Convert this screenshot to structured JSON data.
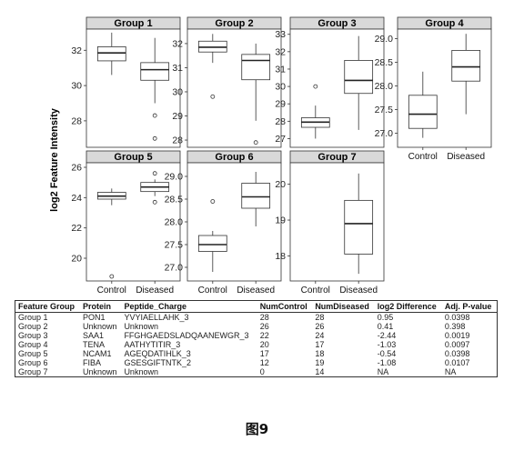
{
  "chart_data": {
    "type": "boxplot",
    "ylabel": "log2 Feature Intensity",
    "categories": [
      "Control",
      "Diseased"
    ],
    "panels": [
      {
        "title": "Group 1",
        "ylim": [
          26.5,
          33.2
        ],
        "yticks": [
          28,
          30,
          32
        ],
        "boxes": [
          {
            "category": "Control",
            "min": 30.6,
            "q1": 31.4,
            "median": 31.85,
            "q3": 32.2,
            "max": 33.0,
            "outliers": []
          },
          {
            "category": "Diseased",
            "min": 29.0,
            "q1": 30.3,
            "median": 30.9,
            "q3": 31.3,
            "max": 32.7,
            "outliers": [
              28.3,
              27.0
            ]
          }
        ]
      },
      {
        "title": "Group 2",
        "ylim": [
          27.7,
          32.6
        ],
        "yticks": [
          28,
          29,
          30,
          31,
          32
        ],
        "boxes": [
          {
            "category": "Control",
            "min": 31.2,
            "q1": 31.65,
            "median": 31.85,
            "q3": 32.1,
            "max": 32.4,
            "outliers": [
              29.8
            ]
          },
          {
            "category": "Diseased",
            "min": 28.8,
            "q1": 30.5,
            "median": 31.3,
            "q3": 31.55,
            "max": 32.0,
            "outliers": [
              27.9
            ]
          }
        ]
      },
      {
        "title": "Group 3",
        "ylim": [
          26.5,
          33.3
        ],
        "yticks": [
          27,
          28,
          29,
          30,
          31,
          32,
          33
        ],
        "boxes": [
          {
            "category": "Control",
            "min": 27.0,
            "q1": 27.65,
            "median": 27.95,
            "q3": 28.2,
            "max": 28.9,
            "outliers": [
              30.0
            ]
          },
          {
            "category": "Diseased",
            "min": 27.5,
            "q1": 29.6,
            "median": 30.35,
            "q3": 31.5,
            "max": 32.9,
            "outliers": []
          }
        ]
      },
      {
        "title": "Group 4",
        "ylim": [
          26.7,
          29.2
        ],
        "yticks": [
          27.0,
          27.5,
          28.0,
          28.5,
          29.0
        ],
        "boxes": [
          {
            "category": "Control",
            "min": 26.9,
            "q1": 27.1,
            "median": 27.4,
            "q3": 27.8,
            "max": 28.3,
            "outliers": []
          },
          {
            "category": "Diseased",
            "min": 27.4,
            "q1": 28.1,
            "median": 28.4,
            "q3": 28.75,
            "max": 29.1,
            "outliers": []
          }
        ]
      },
      {
        "title": "Group 5",
        "ylim": [
          18.5,
          26.3
        ],
        "yticks": [
          20,
          22,
          24,
          26
        ],
        "boxes": [
          {
            "category": "Control",
            "min": 23.5,
            "q1": 23.9,
            "median": 24.1,
            "q3": 24.35,
            "max": 24.6,
            "outliers": [
              18.8
            ]
          },
          {
            "category": "Diseased",
            "min": 24.1,
            "q1": 24.4,
            "median": 24.7,
            "q3": 25.0,
            "max": 25.2,
            "outliers": [
              25.6,
              23.7
            ]
          }
        ]
      },
      {
        "title": "Group 6",
        "ylim": [
          26.7,
          29.3
        ],
        "yticks": [
          27.0,
          27.5,
          28.0,
          28.5,
          29.0
        ],
        "boxes": [
          {
            "category": "Control",
            "min": 26.9,
            "q1": 27.35,
            "median": 27.5,
            "q3": 27.7,
            "max": 27.8,
            "outliers": [
              28.45
            ]
          },
          {
            "category": "Diseased",
            "min": 27.9,
            "q1": 28.3,
            "median": 28.55,
            "q3": 28.85,
            "max": 29.1,
            "outliers": []
          }
        ]
      },
      {
        "title": "Group 7",
        "ylim": [
          17.3,
          20.6
        ],
        "yticks": [
          18,
          19,
          20
        ],
        "boxes": [
          {
            "category": "Diseased",
            "min": 17.5,
            "q1": 18.05,
            "median": 18.9,
            "q3": 19.55,
            "max": 20.3,
            "outliers": []
          }
        ]
      }
    ]
  },
  "table": {
    "headers": [
      "Feature Group",
      "Protein",
      "Peptide_Charge",
      "NumControl",
      "NumDiseased",
      "log2 Difference",
      "Adj. P-value"
    ],
    "rows": [
      [
        "Group 1",
        "PON1",
        "YVYIAELLAHK_3",
        "28",
        "28",
        "0.95",
        "0.0398"
      ],
      [
        "Group 2",
        "Unknown",
        "Unknown",
        "26",
        "26",
        "0.41",
        "0.398"
      ],
      [
        "Group 3",
        "SAA1",
        "FFGHGAEDSLADQAANEWGR_3",
        "22",
        "24",
        "-2.44",
        "0.0019"
      ],
      [
        "Group 4",
        "TENA",
        "AATHYTITIR_3",
        "20",
        "17",
        "-1.03",
        "0.0097"
      ],
      [
        "Group 5",
        "NCAM1",
        "AGEQDATIHLK_3",
        "17",
        "18",
        "-0.54",
        "0.0398"
      ],
      [
        "Group 6",
        "FIBA",
        "GSESGIFTNTK_2",
        "12",
        "19",
        "-1.08",
        "0.0107"
      ],
      [
        "Group 7",
        "Unknown",
        "Unknown",
        "0",
        "14",
        "NA",
        "NA"
      ]
    ]
  },
  "figure_label": "图9"
}
